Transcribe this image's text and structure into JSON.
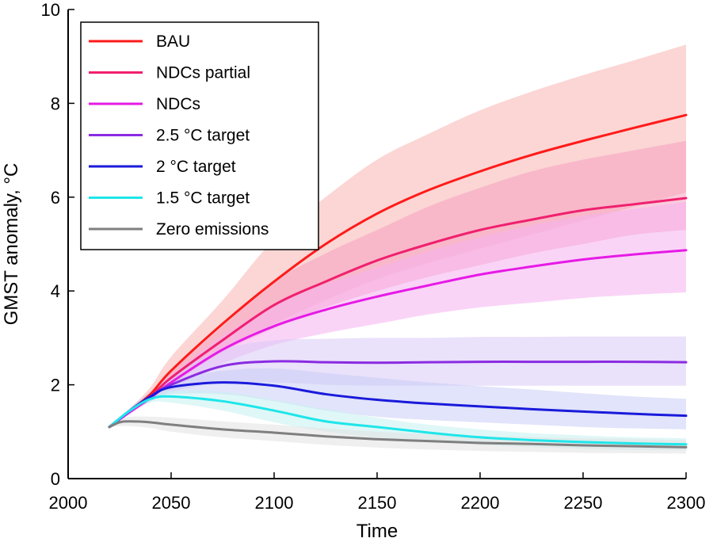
{
  "chart_data": {
    "type": "line",
    "title": "",
    "xlabel": "Time",
    "ylabel": "GMST anomaly, °C",
    "xlim": [
      2000,
      2300
    ],
    "ylim": [
      0,
      10
    ],
    "xticks": [
      2000,
      2050,
      2100,
      2150,
      2200,
      2250,
      2300
    ],
    "yticks": [
      0,
      2,
      4,
      6,
      8,
      10
    ],
    "legend_position": "top-left",
    "grid": false,
    "series": [
      {
        "name": "BAU",
        "color": "#ff1a1a",
        "band_color": "#f7b5b0",
        "x": [
          2020,
          2030,
          2040,
          2050,
          2075,
          2100,
          2125,
          2150,
          2175,
          2200,
          2225,
          2250,
          2275,
          2300
        ],
        "values": [
          1.1,
          1.45,
          1.8,
          2.3,
          3.3,
          4.2,
          5.0,
          5.65,
          6.15,
          6.55,
          6.9,
          7.2,
          7.48,
          7.75
        ],
        "lower": [
          1.1,
          1.4,
          1.7,
          2.0,
          2.7,
          3.3,
          3.8,
          4.25,
          4.6,
          4.9,
          5.2,
          5.5,
          5.8,
          6.1
        ],
        "upper": [
          1.1,
          1.5,
          1.95,
          2.6,
          3.8,
          5.1,
          6.0,
          6.8,
          7.35,
          7.85,
          8.25,
          8.6,
          8.92,
          9.25
        ]
      },
      {
        "name": "NDCs partial",
        "color": "#f0206e",
        "band_color": "#f5a0c0",
        "x": [
          2020,
          2030,
          2040,
          2050,
          2075,
          2100,
          2125,
          2150,
          2175,
          2200,
          2225,
          2250,
          2275,
          2300
        ],
        "values": [
          1.1,
          1.45,
          1.75,
          2.15,
          2.95,
          3.7,
          4.2,
          4.65,
          5.0,
          5.3,
          5.52,
          5.72,
          5.85,
          5.98
        ],
        "lower": [
          1.1,
          1.4,
          1.7,
          2.0,
          2.7,
          3.2,
          3.65,
          4.0,
          4.3,
          4.55,
          4.8,
          5.0,
          5.2,
          5.3
        ],
        "upper": [
          1.1,
          1.5,
          1.85,
          2.3,
          3.25,
          4.2,
          4.8,
          5.3,
          5.8,
          6.2,
          6.55,
          6.8,
          7.0,
          7.2
        ]
      },
      {
        "name": "NDCs",
        "color": "#e61ae6",
        "band_color": "#f5b0f0",
        "x": [
          2020,
          2030,
          2040,
          2050,
          2075,
          2100,
          2125,
          2150,
          2175,
          2200,
          2225,
          2250,
          2275,
          2300
        ],
        "values": [
          1.1,
          1.42,
          1.72,
          2.05,
          2.75,
          3.25,
          3.6,
          3.88,
          4.12,
          4.35,
          4.52,
          4.67,
          4.78,
          4.87
        ],
        "lower": [
          1.1,
          1.38,
          1.65,
          1.9,
          2.45,
          2.85,
          3.1,
          3.3,
          3.5,
          3.65,
          3.75,
          3.85,
          3.92,
          3.97
        ],
        "upper": [
          1.1,
          1.48,
          1.8,
          2.2,
          3.05,
          3.7,
          4.15,
          4.5,
          4.85,
          5.15,
          5.4,
          5.6,
          5.75,
          5.9
        ]
      },
      {
        "name": "2.5 °C target",
        "color": "#8a2be2",
        "band_color": "#d9c8f5",
        "x": [
          2020,
          2030,
          2040,
          2050,
          2075,
          2100,
          2125,
          2150,
          2175,
          2200,
          2225,
          2250,
          2275,
          2300
        ],
        "values": [
          1.1,
          1.45,
          1.75,
          2.0,
          2.4,
          2.5,
          2.48,
          2.47,
          2.48,
          2.49,
          2.49,
          2.49,
          2.49,
          2.48
        ],
        "lower": [
          1.1,
          1.4,
          1.65,
          1.85,
          2.05,
          2.05,
          2.0,
          1.98,
          1.98,
          1.98,
          1.98,
          1.98,
          1.98,
          1.98
        ],
        "upper": [
          1.1,
          1.5,
          1.85,
          2.2,
          2.75,
          2.95,
          2.98,
          3.0,
          3.0,
          3.02,
          3.02,
          3.03,
          3.03,
          3.03
        ]
      },
      {
        "name": "2 °C target",
        "color": "#1a1adb",
        "band_color": "#c9cdf5",
        "x": [
          2020,
          2030,
          2040,
          2050,
          2075,
          2100,
          2125,
          2150,
          2175,
          2200,
          2225,
          2250,
          2275,
          2300
        ],
        "values": [
          1.1,
          1.45,
          1.75,
          1.95,
          2.05,
          1.98,
          1.8,
          1.68,
          1.6,
          1.54,
          1.48,
          1.43,
          1.38,
          1.34
        ],
        "lower": [
          1.1,
          1.4,
          1.65,
          1.8,
          1.8,
          1.65,
          1.45,
          1.32,
          1.25,
          1.2,
          1.15,
          1.1,
          1.07,
          1.05
        ],
        "upper": [
          1.1,
          1.5,
          1.85,
          2.1,
          2.3,
          2.35,
          2.25,
          2.15,
          2.05,
          1.97,
          1.9,
          1.82,
          1.75,
          1.7
        ]
      },
      {
        "name": "1.5 °C target",
        "color": "#1ee6ea",
        "band_color": "#c7f0f1",
        "x": [
          2020,
          2030,
          2040,
          2050,
          2075,
          2100,
          2125,
          2150,
          2175,
          2200,
          2225,
          2250,
          2275,
          2300
        ],
        "values": [
          1.1,
          1.45,
          1.7,
          1.75,
          1.65,
          1.45,
          1.22,
          1.1,
          0.98,
          0.88,
          0.82,
          0.78,
          0.75,
          0.73
        ],
        "lower": [
          1.1,
          1.4,
          1.62,
          1.62,
          1.45,
          1.2,
          1.0,
          0.88,
          0.8,
          0.72,
          0.67,
          0.64,
          0.61,
          0.6
        ],
        "upper": [
          1.1,
          1.5,
          1.8,
          1.88,
          1.85,
          1.68,
          1.48,
          1.3,
          1.15,
          1.05,
          0.97,
          0.92,
          0.88,
          0.86
        ]
      },
      {
        "name": "Zero emissions",
        "color": "#7f7f7f",
        "band_color": "#e2e2e2",
        "x": [
          2020,
          2025,
          2030,
          2040,
          2050,
          2075,
          2100,
          2125,
          2150,
          2175,
          2200,
          2225,
          2250,
          2275,
          2300
        ],
        "values": [
          1.1,
          1.2,
          1.22,
          1.2,
          1.15,
          1.05,
          0.98,
          0.9,
          0.84,
          0.8,
          0.76,
          0.74,
          0.71,
          0.69,
          0.67
        ],
        "lower": [
          1.1,
          1.12,
          1.12,
          1.08,
          1.0,
          0.88,
          0.8,
          0.72,
          0.66,
          0.62,
          0.59,
          0.57,
          0.55,
          0.54,
          0.53
        ],
        "upper": [
          1.1,
          1.28,
          1.32,
          1.32,
          1.3,
          1.22,
          1.15,
          1.07,
          1.0,
          0.95,
          0.91,
          0.88,
          0.86,
          0.84,
          0.82
        ]
      }
    ]
  }
}
